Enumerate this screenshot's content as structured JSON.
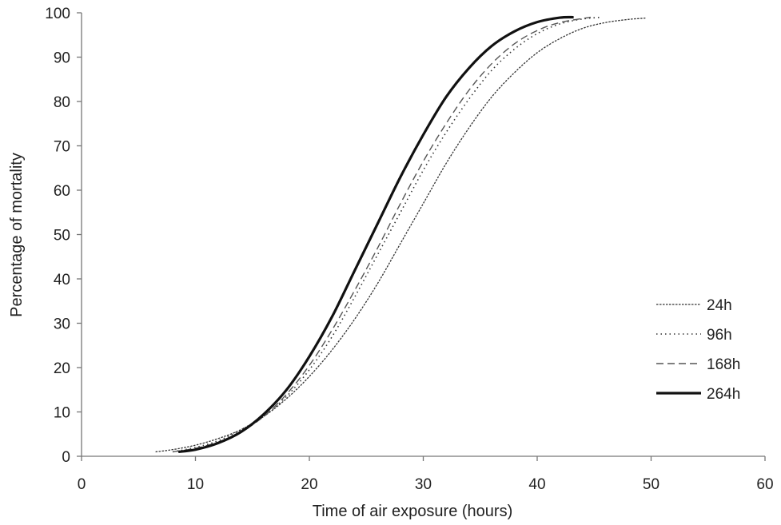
{
  "chart_data": {
    "type": "line",
    "title": "",
    "xlabel": "Time of air exposure (hours)",
    "ylabel": "Percentage of mortality",
    "xlim": [
      0,
      60
    ],
    "ylim": [
      0,
      100
    ],
    "xticks": [
      0,
      10,
      20,
      30,
      40,
      50,
      60
    ],
    "yticks": [
      0,
      10,
      20,
      30,
      40,
      50,
      60,
      70,
      80,
      90,
      100
    ],
    "xtick_labels": [
      "0",
      "10",
      "20",
      "30",
      "40",
      "50",
      "60"
    ],
    "ytick_labels": [
      "0",
      "10",
      "20",
      "30",
      "40",
      "50",
      "60",
      "70",
      "80",
      "90",
      "100"
    ],
    "grid": false,
    "legend_position": "right",
    "series": [
      {
        "name": "24h",
        "style": "fine-dashed",
        "x": [
          6.5,
          8,
          10,
          12,
          14,
          16,
          18,
          20,
          22,
          24,
          26,
          28,
          30,
          32,
          34,
          36,
          38,
          40,
          42,
          44,
          46,
          48,
          49.5
        ],
        "y": [
          1,
          1.5,
          2.5,
          4,
          6,
          9,
          13,
          18,
          24,
          31,
          39,
          48,
          57,
          66,
          74,
          81,
          86.5,
          91,
          94.2,
          96.5,
          97.8,
          98.5,
          98.8
        ]
      },
      {
        "name": "96h",
        "style": "dotted",
        "x": [
          8,
          10,
          12,
          14,
          16,
          18,
          20,
          22,
          24,
          26,
          28,
          30,
          32,
          34,
          36,
          38,
          40,
          42,
          44,
          45.7
        ],
        "y": [
          1,
          2,
          3.5,
          6,
          9,
          13.5,
          19.5,
          27,
          36,
          45.5,
          55,
          64.5,
          73,
          80.5,
          87,
          91.8,
          95.3,
          97.5,
          98.6,
          99
        ]
      },
      {
        "name": "168h",
        "style": "dashed",
        "x": [
          8,
          10,
          12,
          14,
          16,
          18,
          20,
          22,
          24,
          26,
          28,
          30,
          32,
          34,
          36,
          38,
          40,
          42,
          44.7
        ],
        "y": [
          1,
          1.8,
          3.2,
          5.5,
          9,
          14,
          20.5,
          28.5,
          37.5,
          47,
          57,
          66.5,
          75,
          82.5,
          88.5,
          93,
          96,
          97.8,
          99
        ]
      },
      {
        "name": "264h",
        "style": "solid-bold",
        "x": [
          8.5,
          10,
          12,
          14,
          16,
          18,
          20,
          22,
          24,
          26,
          28,
          30,
          32,
          34,
          36,
          38,
          40,
          42,
          43.2
        ],
        "y": [
          1,
          1.5,
          3,
          5.5,
          9.5,
          15,
          22.5,
          31.5,
          42,
          52.5,
          63,
          72.5,
          81,
          87.5,
          92.5,
          95.8,
          97.9,
          98.9,
          99
        ]
      }
    ]
  }
}
